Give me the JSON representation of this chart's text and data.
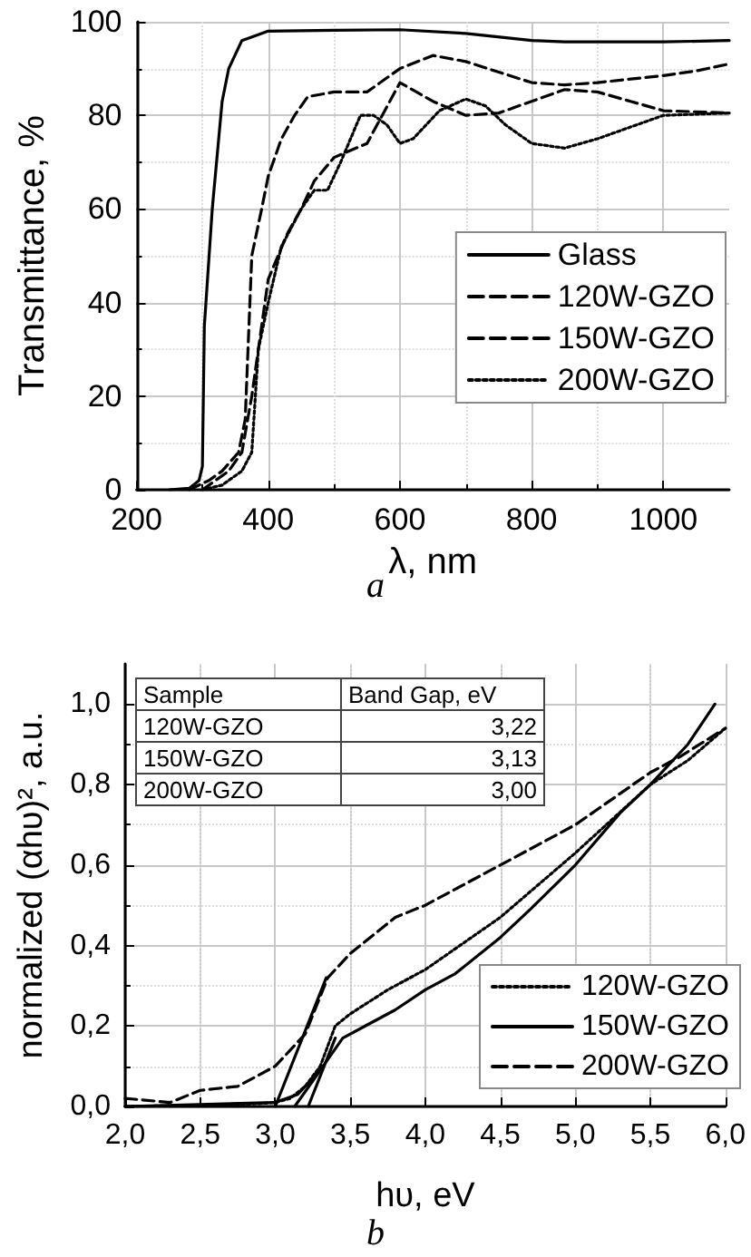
{
  "chart_data": [
    {
      "type": "line",
      "xlabel": "λ, nm",
      "ylabel": "Transmittance, %",
      "annotations": [
        "a"
      ],
      "xlim": [
        200,
        1100
      ],
      "xticks": [
        200,
        400,
        600,
        800,
        1000
      ],
      "ylim": [
        0,
        100
      ],
      "yticks": [
        0,
        20,
        40,
        60,
        80,
        100
      ],
      "grid": true,
      "legend": "right",
      "marker": "none",
      "series": [
        {
          "name": "Glass",
          "color": "#000000",
          "line_style": "solid",
          "x": [
            250,
            280,
            295,
            300,
            303,
            315,
            330,
            340,
            360,
            380,
            400,
            500,
            600,
            700,
            800,
            850,
            1000,
            1100
          ],
          "values": [
            0,
            0.3,
            2,
            5,
            35,
            60,
            83,
            90,
            96,
            97,
            98,
            98.2,
            98.3,
            97.5,
            96,
            95.7,
            95.7,
            96
          ]
        },
        {
          "name": "120W-GZO",
          "color": "#000000",
          "line_style": "dashed",
          "x": [
            280,
            310,
            330,
            355,
            365,
            375,
            390,
            400,
            420,
            440,
            460,
            500,
            550,
            600,
            650,
            700,
            800,
            850,
            900,
            1000,
            1050,
            1100
          ],
          "values": [
            0,
            2,
            4,
            8,
            15,
            50,
            60,
            67,
            75,
            80,
            84,
            85,
            85,
            90,
            92.8,
            91.5,
            87,
            86.5,
            87,
            88.5,
            89.5,
            91
          ]
        },
        {
          "name": "150W-GZO",
          "color": "#000000",
          "line_style": "dashed",
          "x": [
            300,
            320,
            340,
            360,
            375,
            400,
            430,
            450,
            470,
            500,
            550,
            600,
            650,
            700,
            750,
            800,
            850,
            900,
            950,
            1000,
            1100
          ],
          "values": [
            0,
            2,
            4,
            8,
            20,
            45,
            55,
            60,
            66,
            71,
            74,
            87,
            83,
            80,
            80.5,
            83,
            85.5,
            85,
            83,
            81,
            80.5
          ]
        },
        {
          "name": "200W-GZO",
          "color": "#000000",
          "line_style": "dotted",
          "x": [
            300,
            330,
            360,
            375,
            385,
            400,
            420,
            450,
            470,
            490,
            510,
            540,
            560,
            580,
            600,
            620,
            660,
            700,
            730,
            760,
            800,
            850,
            900,
            1000,
            1100
          ],
          "values": [
            0,
            1,
            4,
            8,
            30,
            40,
            52,
            60,
            64,
            64,
            70,
            80,
            80,
            78,
            74,
            75,
            81,
            83.5,
            82,
            78,
            74,
            73,
            75,
            80,
            80.5
          ]
        }
      ]
    },
    {
      "type": "line",
      "xlabel": "hυ, eV",
      "ylabel": "normalized (αhυ)², a.u.",
      "annotations": [
        "b",
        "Sample",
        "Band Gap, eV",
        "120W-GZO",
        "3,22",
        "150W-GZO",
        "3,13",
        "200W-GZO",
        "3,00"
      ],
      "xlim": [
        2.0,
        6.0
      ],
      "xticks": [
        {
          "value": 2.0,
          "label": "2,0"
        },
        {
          "value": 2.5,
          "label": "2,5"
        },
        {
          "value": 3.0,
          "label": "3,0"
        },
        {
          "value": 3.5,
          "label": "3,5"
        },
        {
          "value": 4.0,
          "label": "4,0"
        },
        {
          "value": 4.5,
          "label": "4,5"
        },
        {
          "value": 5.0,
          "label": "5,0"
        },
        {
          "value": 5.5,
          "label": "5,5"
        },
        {
          "value": 6.0,
          "label": "6,0"
        }
      ],
      "ylim": [
        0,
        1.1
      ],
      "yticks": [
        {
          "value": 0,
          "label": "0,0"
        },
        {
          "value": 0.2,
          "label": "0,2"
        },
        {
          "value": 0.4,
          "label": "0,4"
        },
        {
          "value": 0.6,
          "label": "0,6"
        },
        {
          "value": 0.8,
          "label": "0,8"
        },
        {
          "value": 1.0,
          "label": "1,0"
        }
      ],
      "grid": true,
      "legend": "bottom right",
      "marker": "none",
      "series": [
        {
          "name": "120W-GZO",
          "color": "#000000",
          "line_style": "dotted",
          "x": [
            2.0,
            2.8,
            3.0,
            3.1,
            3.2,
            3.3,
            3.4,
            3.5,
            3.75,
            4.0,
            4.5,
            5.0,
            5.5,
            5.75,
            6.0
          ],
          "values": [
            0,
            0.005,
            0.01,
            0.02,
            0.05,
            0.1,
            0.2,
            0.23,
            0.29,
            0.34,
            0.47,
            0.63,
            0.8,
            0.86,
            0.94
          ]
        },
        {
          "name": "150W-GZO",
          "color": "#000000",
          "line_style": "solid",
          "x": [
            2.0,
            3.0,
            3.15,
            3.3,
            3.45,
            3.6,
            3.8,
            4.0,
            4.2,
            4.5,
            4.7,
            5.0,
            5.3,
            5.5,
            5.75,
            5.93
          ],
          "values": [
            0,
            0.01,
            0.03,
            0.09,
            0.17,
            0.2,
            0.24,
            0.29,
            0.33,
            0.42,
            0.49,
            0.6,
            0.73,
            0.8,
            0.9,
            1.0
          ]
        },
        {
          "name": "200W-GZO",
          "color": "#000000",
          "line_style": "dashed",
          "x": [
            2.0,
            2.3,
            2.5,
            2.75,
            3.0,
            3.2,
            3.35,
            3.5,
            3.8,
            4.0,
            4.5,
            5.0,
            5.5,
            5.7,
            6.0
          ],
          "values": [
            0.02,
            0.01,
            0.04,
            0.05,
            0.1,
            0.18,
            0.32,
            0.38,
            0.47,
            0.5,
            0.6,
            0.7,
            0.83,
            0.87,
            0.94
          ]
        },
        {
          "color": "#000000",
          "line_style": "solid",
          "x": [
            3.0,
            3.34
          ],
          "values": [
            0,
            0.32
          ]
        },
        {
          "color": "#000000",
          "line_style": "solid",
          "x": [
            3.13,
            3.32
          ],
          "values": [
            0,
            0.1
          ]
        },
        {
          "color": "#000000",
          "line_style": "solid",
          "x": [
            3.22,
            3.4
          ],
          "values": [
            0,
            0.17
          ]
        }
      ]
    }
  ]
}
